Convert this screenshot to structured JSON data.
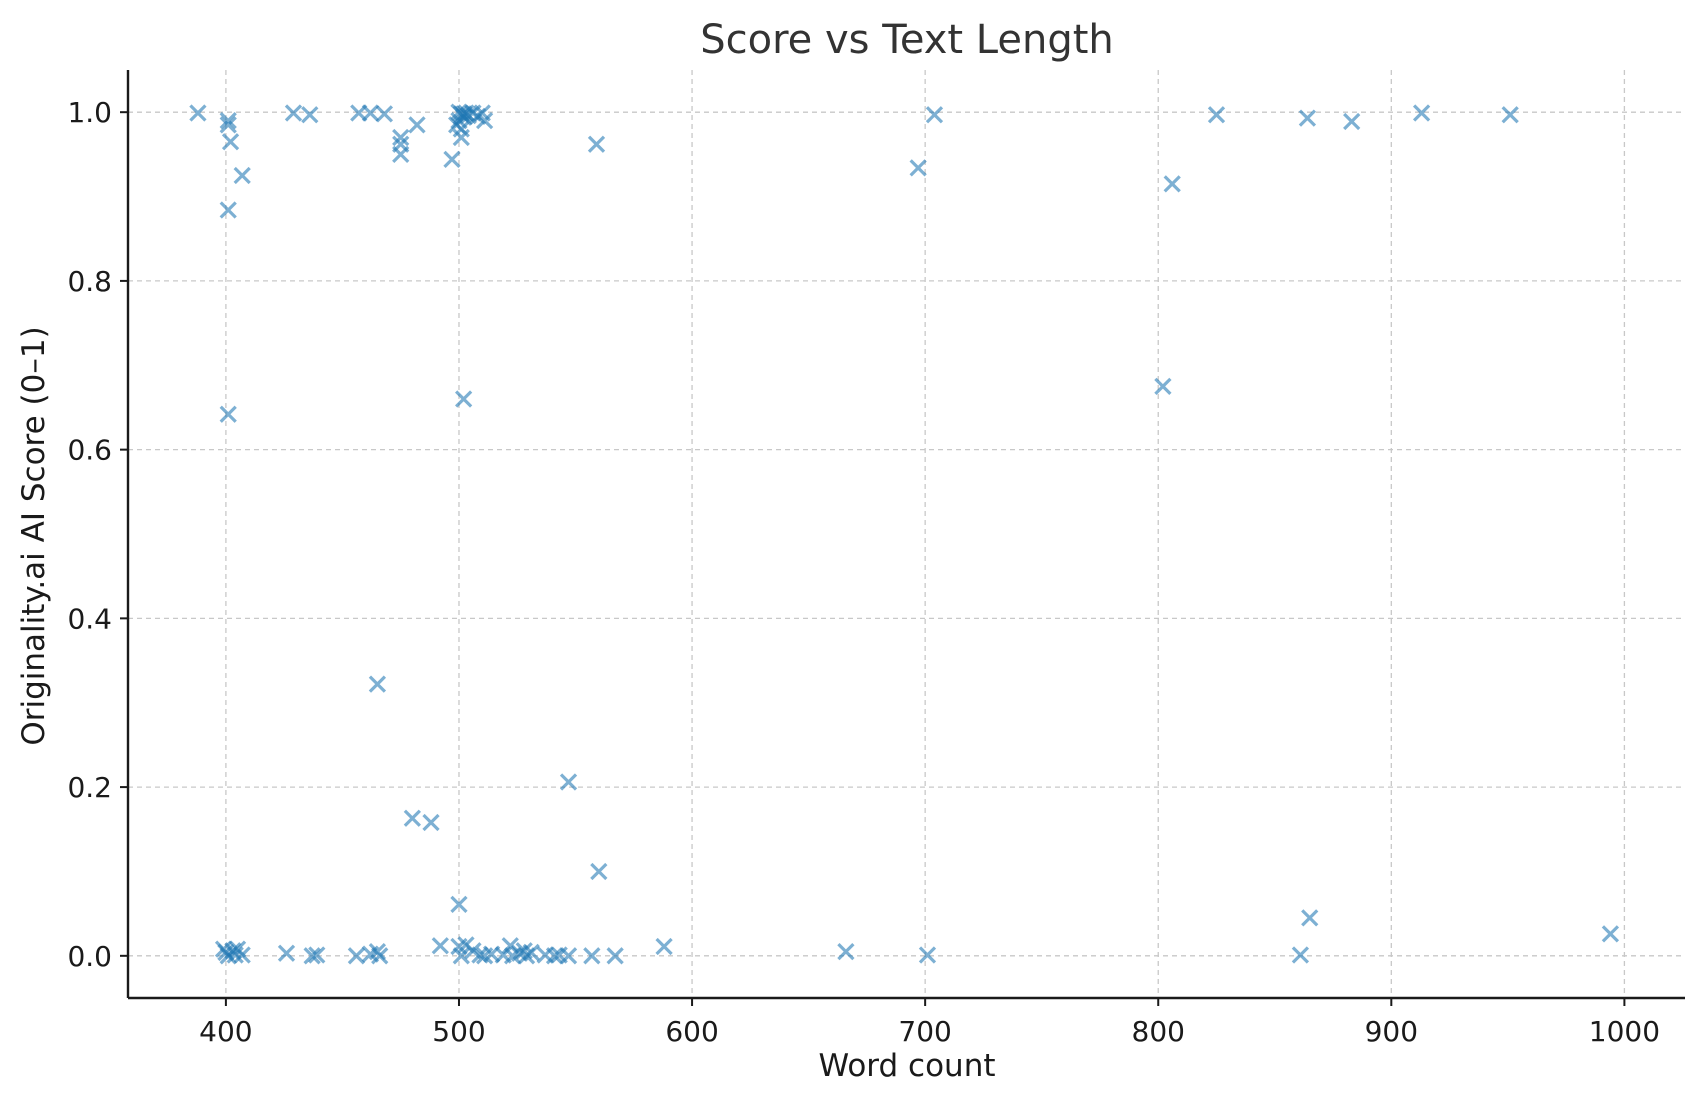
{
  "chart_data": {
    "type": "scatter",
    "title": "Score vs Text Length",
    "xlabel": "Word count",
    "ylabel": "Originality.ai AI Score (0–1)",
    "xlim": [
      358,
      1026
    ],
    "ylim": [
      -0.05,
      1.05
    ],
    "xticks": [
      400,
      500,
      600,
      700,
      800,
      900,
      1000
    ],
    "yticks": [
      0.0,
      0.2,
      0.4,
      0.6,
      0.8,
      1.0
    ],
    "xtick_labels": [
      "400",
      "500",
      "600",
      "700",
      "800",
      "900",
      "1000"
    ],
    "ytick_labels": [
      "0.0",
      "0.2",
      "0.4",
      "0.6",
      "0.8",
      "1.0"
    ],
    "grid": true,
    "marker": "x",
    "color": "#1f77b4",
    "points": [
      [
        388,
        0.999
      ],
      [
        401,
        0.99
      ],
      [
        401,
        0.985
      ],
      [
        402,
        0.965
      ],
      [
        407,
        0.925
      ],
      [
        401,
        0.884
      ],
      [
        401,
        0.642
      ],
      [
        429,
        0.999
      ],
      [
        436,
        0.997
      ],
      [
        457,
        0.999
      ],
      [
        462,
        0.999
      ],
      [
        468,
        0.998
      ],
      [
        475,
        0.97
      ],
      [
        475,
        0.962
      ],
      [
        475,
        0.95
      ],
      [
        482,
        0.985
      ],
      [
        497,
        0.944
      ],
      [
        500,
        1.0
      ],
      [
        501,
        0.998
      ],
      [
        502,
        0.994
      ],
      [
        503,
        0.999
      ],
      [
        500,
        0.99
      ],
      [
        501,
        0.98
      ],
      [
        499,
        0.985
      ],
      [
        501,
        0.97
      ],
      [
        502,
        0.998
      ],
      [
        504,
        0.996
      ],
      [
        506,
        0.999
      ],
      [
        508,
        0.995
      ],
      [
        510,
        0.999
      ],
      [
        511,
        0.99
      ],
      [
        502,
        0.66
      ],
      [
        559,
        0.962
      ],
      [
        697,
        0.934
      ],
      [
        704,
        0.997
      ],
      [
        802,
        0.675
      ],
      [
        806,
        0.915
      ],
      [
        825,
        0.997
      ],
      [
        864,
        0.993
      ],
      [
        883,
        0.989
      ],
      [
        913,
        0.999
      ],
      [
        951,
        0.997
      ],
      [
        465,
        0.322
      ],
      [
        547,
        0.206
      ],
      [
        480,
        0.163
      ],
      [
        488,
        0.158
      ],
      [
        560,
        0.1
      ],
      [
        500,
        0.061
      ],
      [
        399,
        0.008
      ],
      [
        400,
        0.004
      ],
      [
        401,
        0.0
      ],
      [
        403,
        0.006
      ],
      [
        404,
        0.001
      ],
      [
        405,
        0.008
      ],
      [
        407,
        0.001
      ],
      [
        426,
        0.003
      ],
      [
        437,
        0.0
      ],
      [
        439,
        0.001
      ],
      [
        456,
        0.0
      ],
      [
        462,
        0.002
      ],
      [
        465,
        0.005
      ],
      [
        466,
        0.0
      ],
      [
        492,
        0.012
      ],
      [
        500,
        0.011
      ],
      [
        501,
        0.0
      ],
      [
        503,
        0.013
      ],
      [
        506,
        0.006
      ],
      [
        509,
        0.001
      ],
      [
        511,
        0.0
      ],
      [
        514,
        0.002
      ],
      [
        519,
        0.001
      ],
      [
        522,
        0.012
      ],
      [
        523,
        0.0
      ],
      [
        526,
        0.003
      ],
      [
        528,
        0.006
      ],
      [
        529,
        0.0
      ],
      [
        531,
        0.004
      ],
      [
        537,
        0.001
      ],
      [
        541,
        0.0
      ],
      [
        543,
        0.001
      ],
      [
        547,
        0.0
      ],
      [
        557,
        0.0
      ],
      [
        567,
        0.0
      ],
      [
        588,
        0.011
      ],
      [
        666,
        0.005
      ],
      [
        701,
        0.001
      ],
      [
        861,
        0.001
      ],
      [
        865,
        0.045
      ],
      [
        994,
        0.026
      ]
    ]
  }
}
